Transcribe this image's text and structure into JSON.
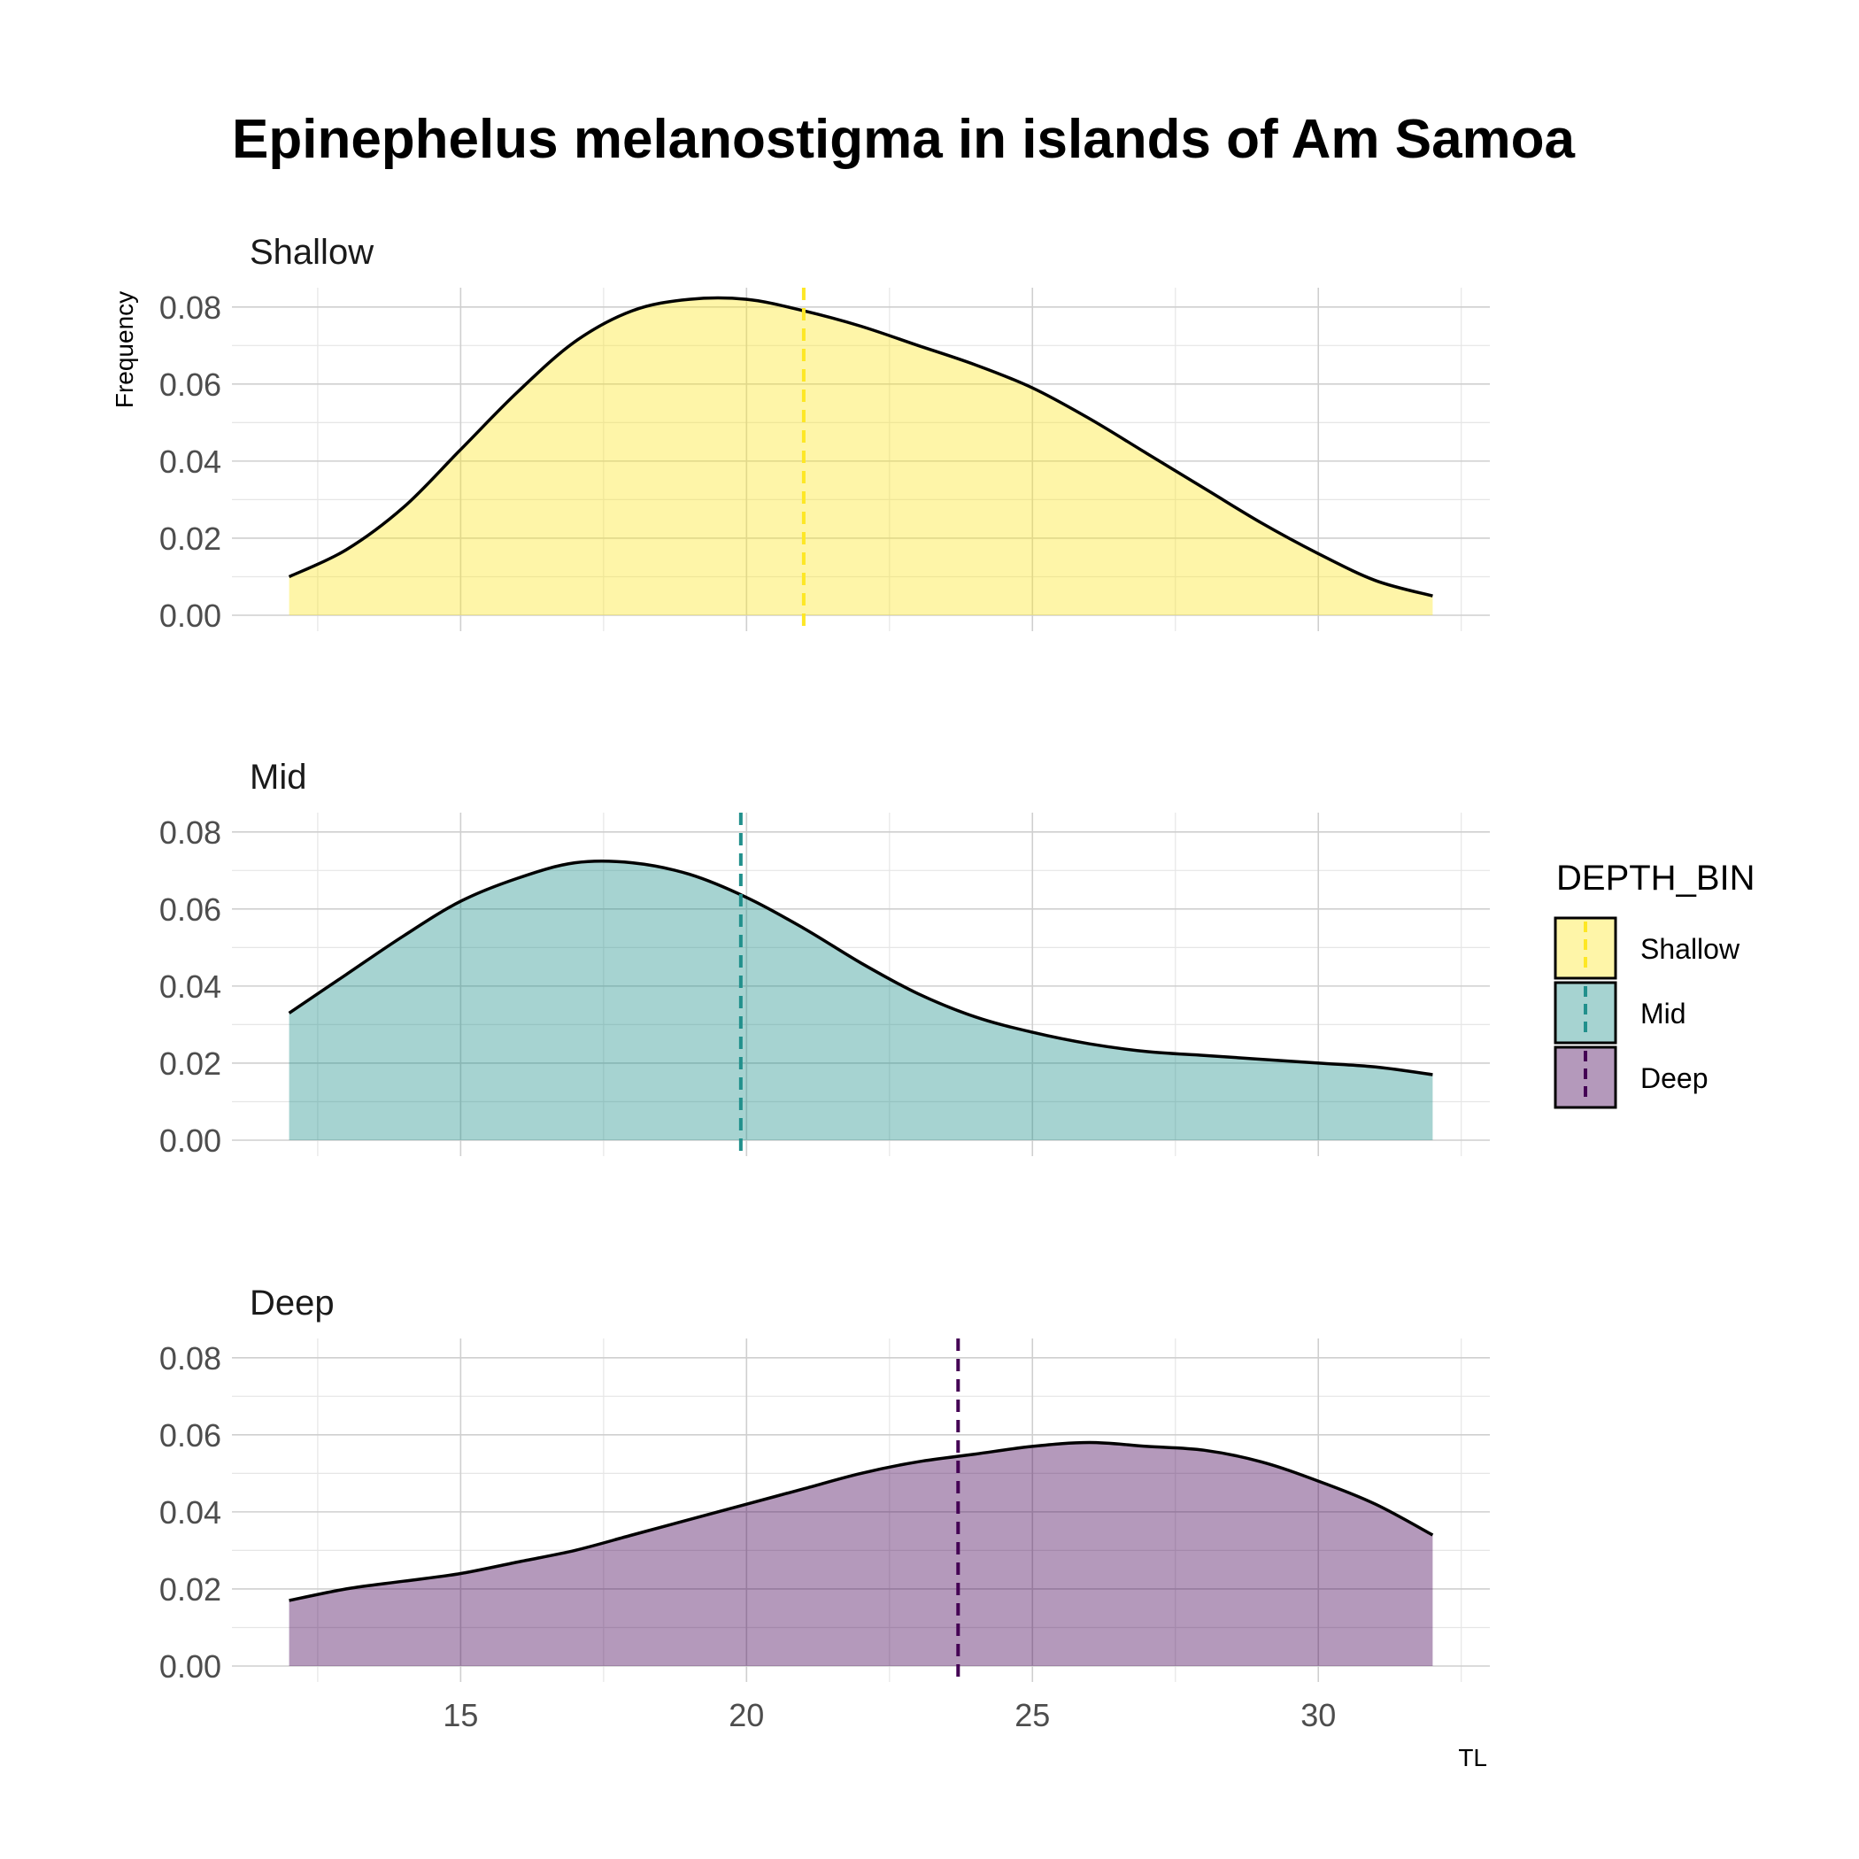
{
  "chart_data": {
    "type": "area",
    "title": "Epinephelus melanostigma in islands of Am Samoa",
    "xlabel": "TL",
    "ylabel": "Frequency",
    "xlim": [
      11,
      33
    ],
    "ylim": [
      0,
      0.085
    ],
    "x_ticks": [
      15,
      20,
      25,
      30
    ],
    "x_tick_labels": [
      "15",
      "20",
      "25",
      "30"
    ],
    "y_ticks": [
      0,
      0.02,
      0.04,
      0.06,
      0.08
    ],
    "y_tick_labels": [
      "0.00",
      "0.02",
      "0.04",
      "0.06",
      "0.08"
    ],
    "grid": true,
    "legend": {
      "title": "DEPTH_BIN",
      "position": "right"
    },
    "x": [
      12,
      13,
      14,
      15,
      16,
      17,
      18,
      19,
      20,
      21,
      22,
      23,
      24,
      25,
      26,
      27,
      28,
      29,
      30,
      31,
      32
    ],
    "series": [
      {
        "name": "Shallow",
        "color": "#FDE725",
        "mean": 21,
        "values": [
          0.01,
          0.017,
          0.028,
          0.043,
          0.058,
          0.071,
          0.079,
          0.082,
          0.082,
          0.079,
          0.075,
          0.07,
          0.065,
          0.059,
          0.051,
          0.042,
          0.033,
          0.024,
          0.016,
          0.009,
          0.005
        ]
      },
      {
        "name": "Mid",
        "color": "#21908C",
        "mean": 19.9,
        "values": [
          0.033,
          0.043,
          0.053,
          0.062,
          0.068,
          0.072,
          0.072,
          0.069,
          0.063,
          0.055,
          0.046,
          0.038,
          0.032,
          0.028,
          0.025,
          0.023,
          0.022,
          0.021,
          0.02,
          0.019,
          0.017
        ]
      },
      {
        "name": "Deep",
        "color": "#440154",
        "mean": 23.7,
        "values": [
          0.017,
          0.02,
          0.022,
          0.024,
          0.027,
          0.03,
          0.034,
          0.038,
          0.042,
          0.046,
          0.05,
          0.053,
          0.055,
          0.057,
          0.058,
          0.057,
          0.056,
          0.053,
          0.048,
          0.042,
          0.034
        ]
      }
    ]
  }
}
